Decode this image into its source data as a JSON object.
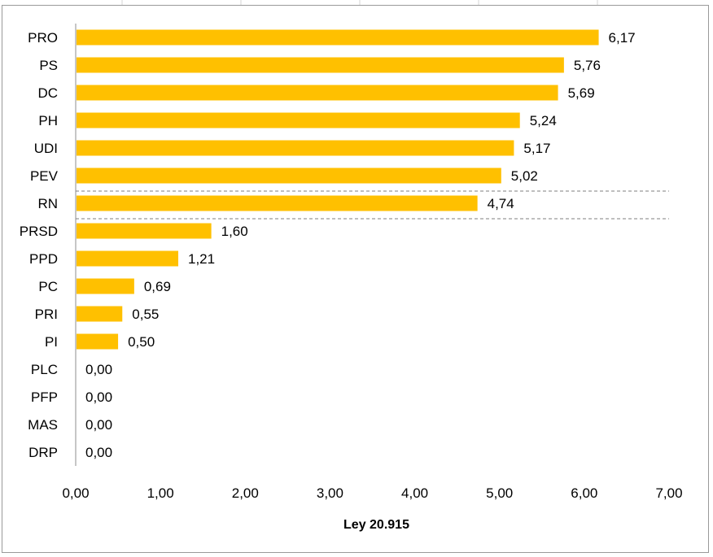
{
  "chart_data": {
    "type": "bar",
    "orientation": "horizontal",
    "categories": [
      "PRO",
      "PS",
      "DC",
      "PH",
      "UDI",
      "PEV",
      "RN",
      "PRSD",
      "PPD",
      "PC",
      "PRI",
      "PI",
      "PLC",
      "PFP",
      "MAS",
      "DRP"
    ],
    "values": [
      6.17,
      5.76,
      5.69,
      5.24,
      5.17,
      5.02,
      4.74,
      1.6,
      1.21,
      0.69,
      0.55,
      0.5,
      0.0,
      0.0,
      0.0,
      0.0
    ],
    "value_labels": [
      "6,17",
      "5,76",
      "5,69",
      "5,24",
      "5,17",
      "5,02",
      "4,74",
      "1,60",
      "1,21",
      "0,69",
      "0,55",
      "0,50",
      "0,00",
      "0,00",
      "0,00",
      "0,00"
    ],
    "xlim": [
      0,
      7
    ],
    "x_ticks": [
      0,
      1,
      2,
      3,
      4,
      5,
      6,
      7
    ],
    "x_tick_labels": [
      "0,00",
      "1,00",
      "2,00",
      "3,00",
      "4,00",
      "5,00",
      "6,00",
      "7,00"
    ],
    "xlabel": "Ley 20.915",
    "ylabel": "",
    "title": "",
    "bar_color": "#FFC000",
    "grid": false,
    "legend": "none",
    "highlighted_category": "RN",
    "highlight_style": "dashed separator lines above and below"
  }
}
